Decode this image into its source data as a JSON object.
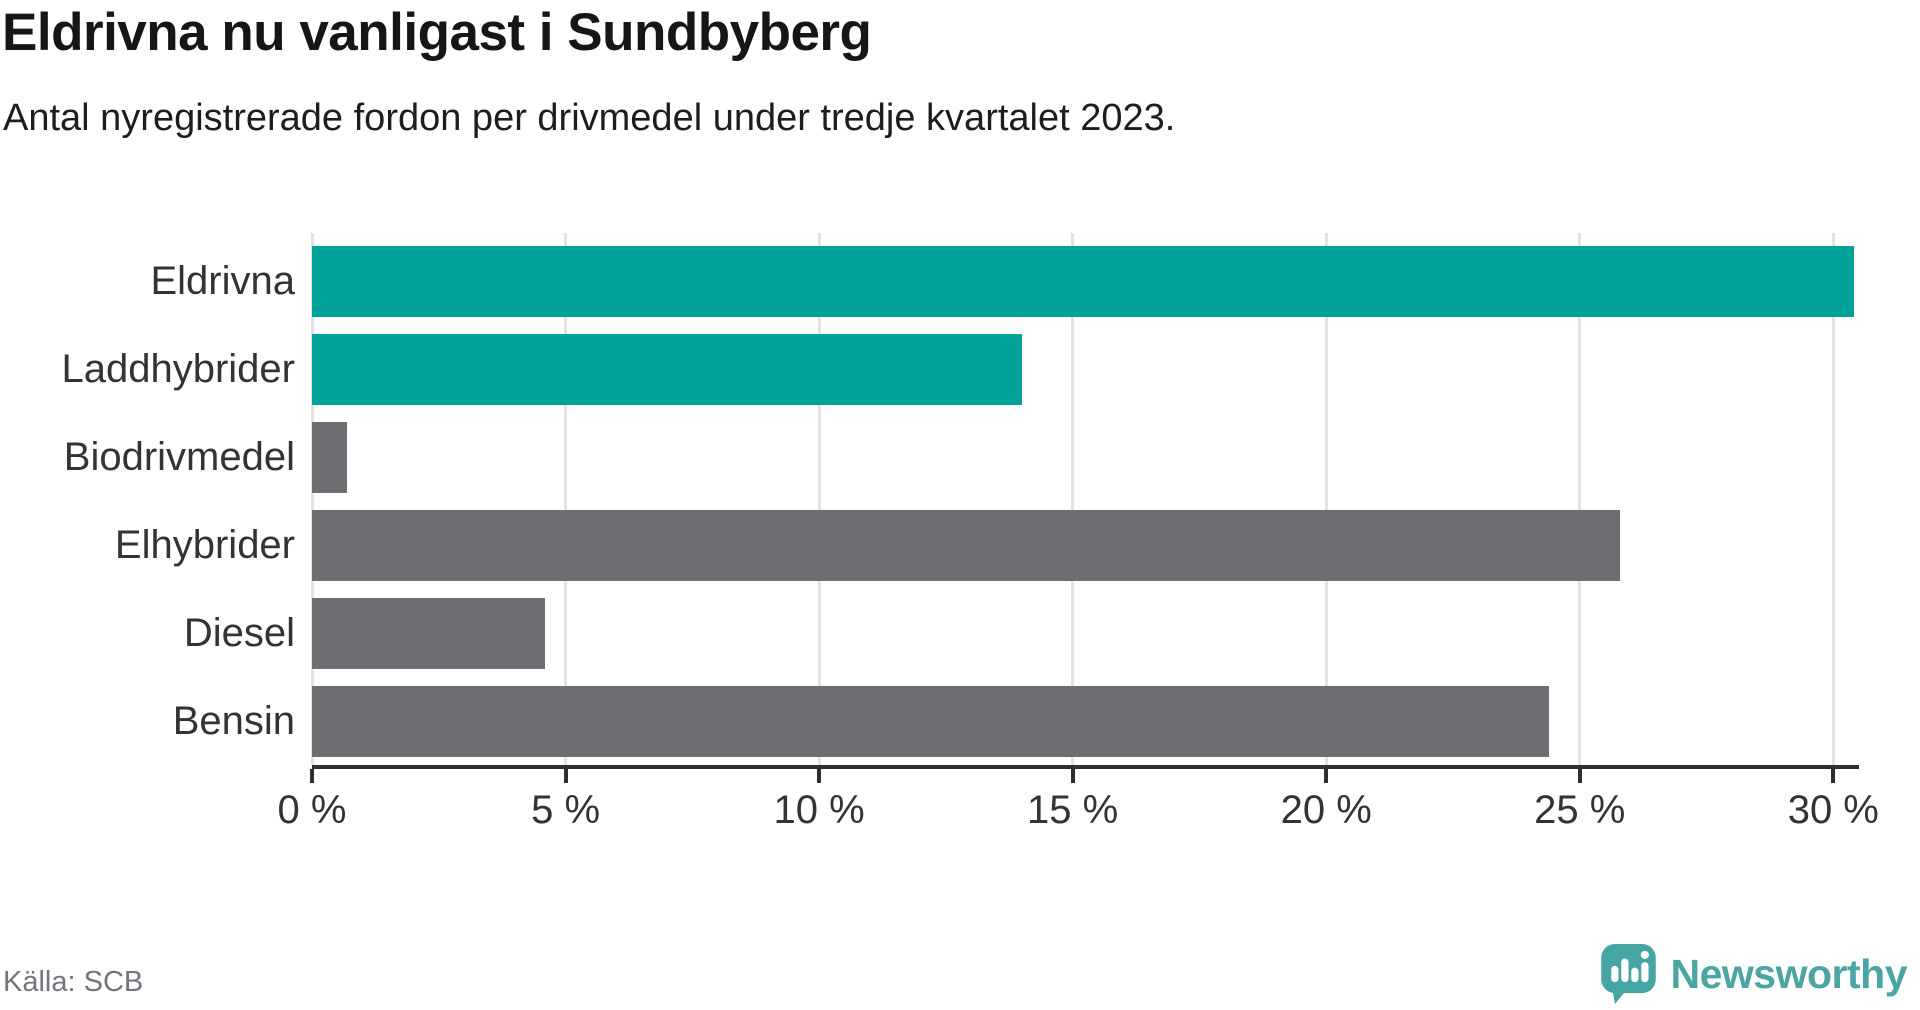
{
  "chart_data": {
    "type": "bar",
    "orientation": "horizontal",
    "title": "Eldrivna nu vanligast i Sundbyberg",
    "subtitle": "Antal nyregistrerade fordon per drivmedel under tredje kvartalet 2023.",
    "categories": [
      "Eldrivna",
      "Laddhybrider",
      "Biodrivmedel",
      "Elhybrider",
      "Diesel",
      "Bensin"
    ],
    "values": [
      30.4,
      14.0,
      0.7,
      25.8,
      4.6,
      24.4
    ],
    "unit": "%",
    "bar_colors": [
      "#00a29a",
      "#00a29a",
      "#6d6d72",
      "#6d6d72",
      "#6d6d72",
      "#6d6d72"
    ],
    "xlabel": "",
    "ylabel": "",
    "xlim": [
      0,
      30.5
    ],
    "x_ticks": [
      0,
      5,
      10,
      15,
      20,
      25,
      30
    ],
    "x_tick_labels": [
      "0 %",
      "5 %",
      "10 %",
      "15 %",
      "20 %",
      "25 %",
      "30 %"
    ],
    "grid": "vertical-gridlines-on",
    "legend": "none"
  },
  "footer": {
    "source": "Källa: SCB",
    "brand": "Newsworthy"
  },
  "colors": {
    "accent_teal": "#00a29a",
    "neutral_gray": "#6d6d72",
    "gridline": "#e2e2e2",
    "axis": "#2e2e2e",
    "source_text": "#74747c",
    "logo_teal": "#45a5a3"
  },
  "icons": {
    "logo_pin": "map-pin-speech-bubble-with-bar-chart-and-exclamation"
  }
}
